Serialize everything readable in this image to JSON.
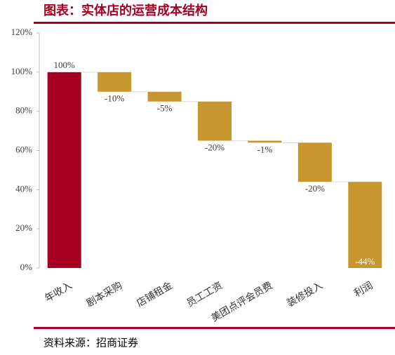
{
  "chart_data": {
    "type": "waterfall",
    "title": "图表：实体店的运营成本结构",
    "source": "资料来源：招商证券",
    "categories": [
      "年收入",
      "剧本采购",
      "店铺租金",
      "员工工资",
      "美团点评会员费",
      "装修投入",
      "利润"
    ],
    "values": [
      100,
      -10,
      -5,
      -20,
      -1,
      -20,
      -44
    ],
    "value_labels": [
      "100%",
      "-10%",
      "-5%",
      "-20%",
      "-1%",
      "-20%",
      "-44%"
    ],
    "colors": {
      "positive": "#a50021",
      "negative": "#c8962e"
    },
    "ylim": [
      0,
      120
    ],
    "yticks": [
      {
        "value": 0,
        "label": "0%"
      },
      {
        "value": 20,
        "label": "20%"
      },
      {
        "value": 40,
        "label": "40%"
      },
      {
        "value": 60,
        "label": "60%"
      },
      {
        "value": 80,
        "label": "80%"
      },
      {
        "value": 100,
        "label": "100%"
      },
      {
        "value": 120,
        "label": "120%"
      }
    ],
    "grid": false
  }
}
